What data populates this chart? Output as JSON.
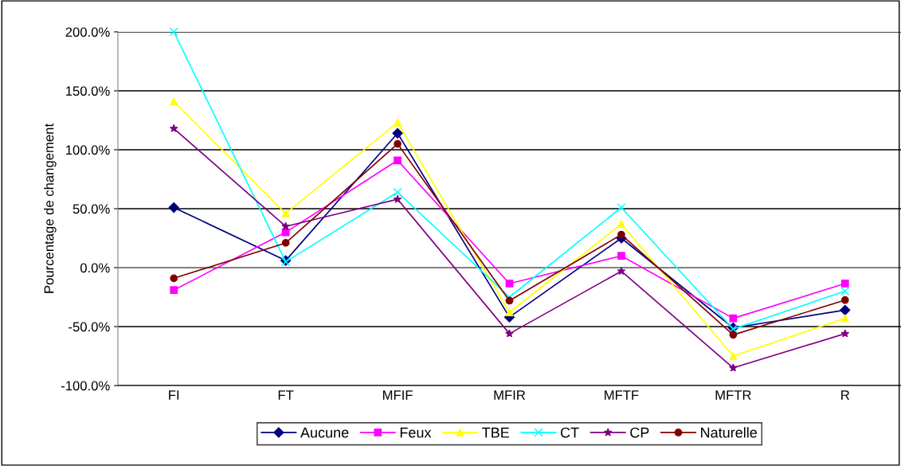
{
  "chart_data": {
    "type": "line",
    "ylabel": "Pourcentage de changement",
    "categories": [
      "FI",
      "FT",
      "MFIF",
      "MFIR",
      "MFTF",
      "MFTR",
      "R"
    ],
    "series": [
      {
        "name": "Aucune",
        "color": "#000080",
        "marker": "diamond",
        "values": [
          51,
          6,
          114,
          -42,
          25,
          -51,
          -36
        ]
      },
      {
        "name": "Feux",
        "color": "#ff00ff",
        "marker": "square",
        "values": [
          -19,
          30,
          91,
          -13.5,
          10,
          -43,
          -13.5
        ]
      },
      {
        "name": "TBE",
        "color": "#ffff00",
        "marker": "triangle",
        "values": [
          141,
          46,
          123,
          -38,
          37,
          -75,
          -43
        ]
      },
      {
        "name": "CT",
        "color": "#00ffff",
        "marker": "cross",
        "values": [
          200,
          5,
          64,
          -25,
          51,
          -52,
          -20
        ]
      },
      {
        "name": "CP",
        "color": "#800080",
        "marker": "star",
        "values": [
          118,
          35,
          58,
          -56,
          -3,
          -85,
          -56
        ]
      },
      {
        "name": "Naturelle",
        "color": "#800000",
        "marker": "circle",
        "values": [
          -9,
          21,
          105,
          -28,
          28,
          -57,
          -27.5
        ]
      }
    ],
    "ylim": [
      -100,
      200
    ],
    "yticks": [
      {
        "value": -100,
        "label": "-100.0%"
      },
      {
        "value": -50,
        "label": "-50.0%"
      },
      {
        "value": 0,
        "label": "0.0%"
      },
      {
        "value": 50,
        "label": "50.0%"
      },
      {
        "value": 100,
        "label": "100.0%"
      },
      {
        "value": 150,
        "label": "150.0%"
      },
      {
        "value": 200,
        "label": "200.0%"
      }
    ],
    "grid": "y",
    "legend": "bottom"
  }
}
